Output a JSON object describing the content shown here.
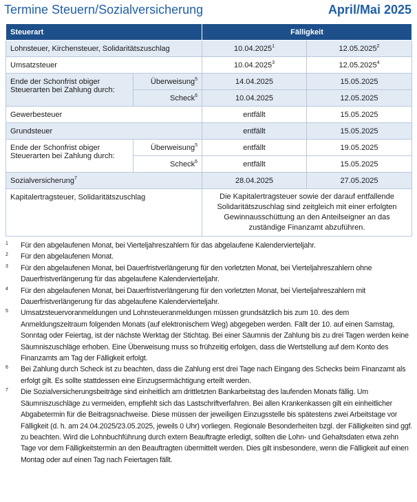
{
  "header": {
    "title": "Termine Steuern/Sozialversicherung",
    "period": "April/Mai 2025"
  },
  "table": {
    "columns": [
      "Steuerart",
      "Fälligkeit"
    ],
    "rows": [
      {
        "label": "Lohnsteuer, Kirchensteuer, Solidaritätszuschlag",
        "due": [
          {
            "date": "10.04.2025",
            "note": "1"
          },
          {
            "date": "12.05.2025",
            "note": "2"
          }
        ]
      },
      {
        "label": "Umsatzsteuer",
        "due": [
          {
            "date": "10.04.2025",
            "note": "3"
          },
          {
            "date": "12.05.2025",
            "note": "4"
          }
        ]
      },
      {
        "label": "Ende der Schonfrist obiger Steuerarten bei Zahlung durch:",
        "methods": [
          {
            "method": "Überweisung",
            "note": "5",
            "due": [
              "14.04.2025",
              "15.05.2025"
            ]
          },
          {
            "method": "Scheck",
            "note": "6",
            "due": [
              "10.04.2025",
              "12.05.2025"
            ]
          }
        ]
      },
      {
        "label": "Gewerbesteuer",
        "due": [
          {
            "date": "entfällt"
          },
          {
            "date": "15.05.2025"
          }
        ]
      },
      {
        "label": "Grundsteuer",
        "due": [
          {
            "date": "entfällt"
          },
          {
            "date": "15.05.2025"
          }
        ]
      },
      {
        "label": "Ende der Schonfrist obiger Steuerarten bei Zahlung durch:",
        "methods": [
          {
            "method": "Überweisung",
            "note": "5",
            "due": [
              "entfällt",
              "19.05.2025"
            ]
          },
          {
            "method": "Scheck",
            "note": "6",
            "due": [
              "entfällt",
              "15.05.2025"
            ]
          }
        ]
      },
      {
        "label": "Sozialversicherung",
        "note": "7",
        "due": [
          {
            "date": "28.04.2025"
          },
          {
            "date": "27.05.2025"
          }
        ]
      },
      {
        "label": "Kapitalertragsteuer, Solidaritätszuschlag",
        "remark": "Die Kapitalertragsteuer sowie der darauf entfallende Solidaritätszuschlag sind zeitgleich mit einer erfolgten Gewinnausschüttung an den Anteilseigner an das zuständige Finanzamt abzuführen."
      }
    ]
  },
  "footnotes": [
    {
      "mark": "1",
      "text": "Für den abgelaufenen Monat, bei Vierteljahreszahlern für das abgelaufene Kalendervierteljahr."
    },
    {
      "mark": "2",
      "text": "Für den abgelaufenen Monat."
    },
    {
      "mark": "3",
      "text": "Für den abgelaufenen Monat, bei Dauerfristverlängerung für den vorletzten Monat, bei Vierteljahreszahlern ohne Dauerfristverlängerung für das abgelaufene Kalendervierteljahr."
    },
    {
      "mark": "4",
      "text": "Für den abgelaufenen Monat, bei Dauerfristverlängerung für den vorletzten Monat, bei Vierteljahreszahlern mit Dauerfristverlängerung für das abgelaufene Kalendervierteljahr."
    },
    {
      "mark": "5",
      "text": "Umsatzsteuervoranmeldungen und Lohnsteueranmeldungen müssen grundsätzlich bis zum 10. des dem Anmeldungszeitraum folgenden Monats (auf elektronischem Weg) abgegeben werden. Fällt der 10. auf einen Samstag, Sonntag oder Feiertag, ist der nächste Werktag der Stichtag. Bei einer Säumnis der Zahlung bis zu drei Tagen werden keine Säumniszuschläge erhoben. Eine Überweisung muss so frühzeitig erfolgen, dass die Wertstellung auf dem Konto des Finanzamts am Tag der Fälligkeit erfolgt."
    },
    {
      "mark": "6",
      "text": "Bei Zahlung durch Scheck ist zu beachten, dass die Zahlung erst drei Tage nach Eingang des Schecks beim Finanzamt als erfolgt gilt. Es sollte stattdessen eine Einzugsermächtigung erteilt werden."
    },
    {
      "mark": "7",
      "text": "Die Sozialversicherungsbeiträge sind einheitlich am drittletzten Bankarbeitstag des laufenden Monats fällig. Um Säumniszuschläge zu vermeiden, empfiehlt sich das Lastschriftverfahren. Bei allen Krankenkassen gilt ein einheitlicher Abgabetermin für die Beitragsnachweise. Diese müssen der jeweiligen Einzugsstelle bis spätestens zwei Arbeitstage vor Fälligkeit (d. h. am 24.04.2025/23.05.2025, jeweils 0 Uhr) vorliegen. Regionale Besonderheiten bzgl. der Fälligkeiten sind ggf. zu beachten. Wird die Lohnbuchführung durch extern Beauftragte erledigt, sollten die Lohn- und Gehaltsdaten etwa zehn Tage vor dem Fälligkeitstermin an den Beauftragten übermittelt werden. Dies gilt insbesondere, wenn die Fälligkeit auf einen Montag oder auf einen Tag nach Feiertagen fällt."
    }
  ]
}
